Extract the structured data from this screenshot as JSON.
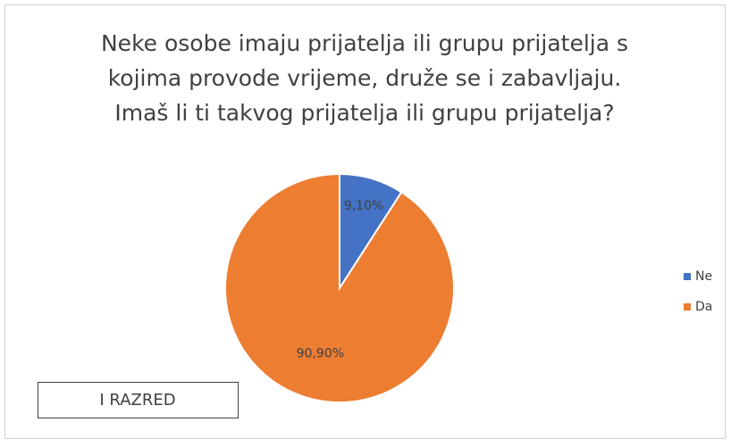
{
  "chart_data": {
    "type": "pie",
    "title": [
      "Neke osobe imaju prijatelja ili grupu prijatelja s",
      "kojima provode vrijeme, druže se i zabavljaju.",
      "Imaš li ti takvog prijatelja ili grupu prijatelja?"
    ],
    "categories": [
      "Ne",
      "Da"
    ],
    "values": [
      9.1,
      90.9
    ],
    "value_labels": [
      "9,10%",
      "90,90%"
    ],
    "colors": [
      "#4472c4",
      "#ed7d31"
    ],
    "legend": "right",
    "annotation": "I RAZRED"
  }
}
